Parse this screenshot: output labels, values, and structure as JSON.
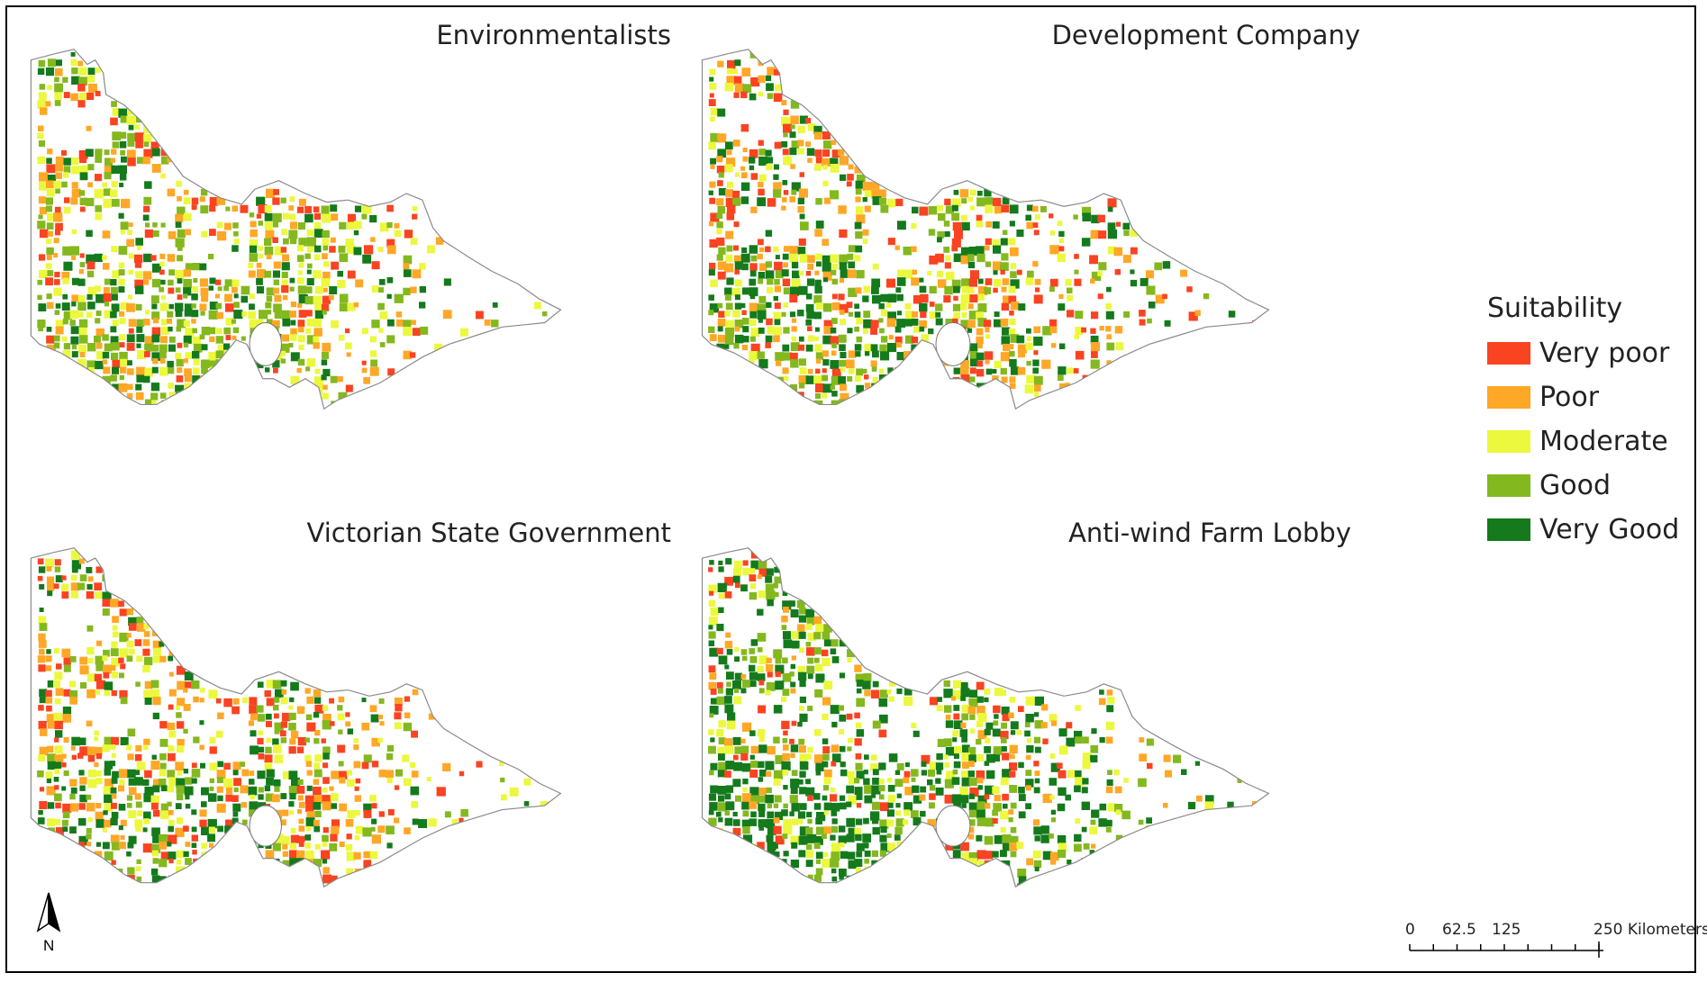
{
  "panels": [
    {
      "title": "Environmentalists",
      "profile": [
        0.14,
        0.2,
        0.24,
        0.26,
        0.16
      ]
    },
    {
      "title": "Development Company",
      "profile": [
        0.24,
        0.22,
        0.18,
        0.16,
        0.2
      ]
    },
    {
      "title": "Victorian State Government",
      "profile": [
        0.22,
        0.24,
        0.2,
        0.18,
        0.16
      ]
    },
    {
      "title": "Anti-wind Farm Lobby",
      "profile": [
        0.1,
        0.12,
        0.18,
        0.22,
        0.38
      ]
    }
  ],
  "legend": {
    "title": "Suitability",
    "items": [
      {
        "label": "Very poor",
        "color": "#f94321"
      },
      {
        "label": "Poor",
        "color": "#ffa726"
      },
      {
        "label": "Moderate",
        "color": "#ebf83e"
      },
      {
        "label": "Good",
        "color": "#84b81f"
      },
      {
        "label": "Very Good",
        "color": "#147a1c"
      }
    ]
  },
  "north_arrow": {
    "label": "N"
  },
  "scale_bar": {
    "ticks": [
      "0",
      "62.5",
      "125",
      "250 Kilometers"
    ],
    "tick_values": [
      0,
      62.5,
      125,
      250
    ],
    "max": 250
  }
}
